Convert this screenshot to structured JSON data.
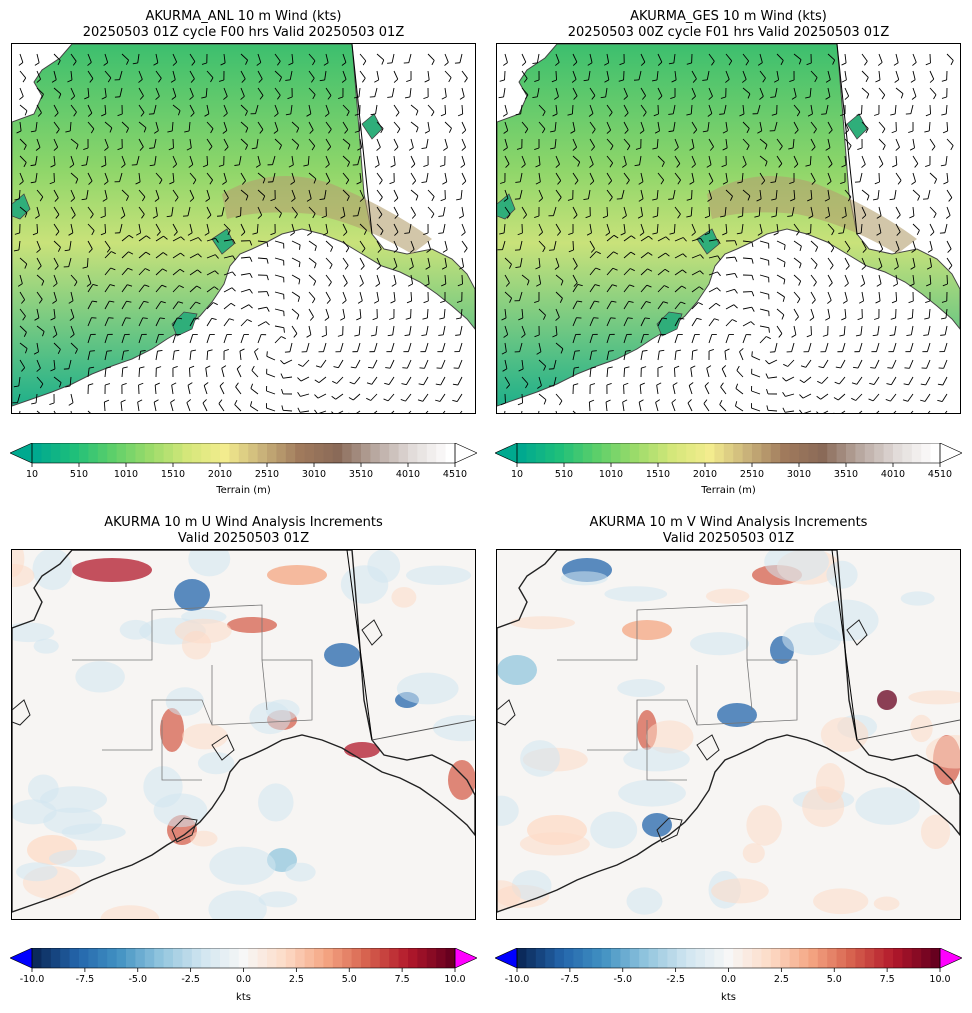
{
  "panels": [
    {
      "id": "anl",
      "title_line1": "AKURMA_ANL 10 m Wind (kts)",
      "title_line2": "20250503 01Z cycle F00 hrs Valid 20250503 01Z",
      "kind": "terrain"
    },
    {
      "id": "ges",
      "title_line1": "AKURMA_GES 10 m Wind (kts)",
      "title_line2": "20250503 00Z cycle F01 hrs Valid 20250503 01Z",
      "kind": "terrain"
    },
    {
      "id": "u_inc",
      "title_line1": "AKURMA 10 m U Wind Analysis Increments",
      "title_line2": "Valid 20250503 01Z",
      "kind": "increment"
    },
    {
      "id": "v_inc",
      "title_line1": "AKURMA 10 m V Wind Analysis Increments",
      "title_line2": "Valid 20250503 01Z",
      "kind": "increment"
    }
  ],
  "chart_data": [
    {
      "type": "heatmap",
      "title": "AKURMA_ANL 10 m Wind (kts) / 20250503 01Z cycle F00 hrs Valid 20250503 01Z",
      "colorbar": {
        "label": "Terrain (m)",
        "ticks": [
          "10",
          "510",
          "1010",
          "1510",
          "2010",
          "2510",
          "3010",
          "3510",
          "4010",
          "4510"
        ],
        "range": [
          10,
          4510
        ],
        "colors": [
          "#00a98f",
          "#1fbf7a",
          "#5ccf6a",
          "#9adb6a",
          "#d4e77a",
          "#f3ec8e",
          "#c9b27a",
          "#a07a5c",
          "#8a6a58",
          "#b8a8a0",
          "#e2dcda",
          "#ffffff"
        ]
      },
      "overlay": "wind barbs"
    },
    {
      "type": "heatmap",
      "title": "AKURMA_GES 10 m Wind (kts) / 20250503 00Z cycle F01 hrs Valid 20250503 01Z",
      "colorbar": {
        "label": "Terrain (m)",
        "ticks": [
          "10",
          "510",
          "1010",
          "1510",
          "2010",
          "2510",
          "3010",
          "3510",
          "4010",
          "4510"
        ],
        "range": [
          10,
          4510
        ],
        "colors": [
          "#00a98f",
          "#1fbf7a",
          "#5ccf6a",
          "#9adb6a",
          "#d4e77a",
          "#f3ec8e",
          "#c9b27a",
          "#a07a5c",
          "#8a6a58",
          "#b8a8a0",
          "#e2dcda",
          "#ffffff"
        ]
      },
      "overlay": "wind barbs"
    },
    {
      "type": "heatmap",
      "title": "AKURMA 10 m U Wind Analysis Increments / Valid 20250503 01Z",
      "colorbar": {
        "label": "kts",
        "ticks": [
          "-10.0",
          "-7.5",
          "-5.0",
          "-2.5",
          "0.0",
          "2.5",
          "5.0",
          "7.5",
          "10.0"
        ],
        "range": [
          -10,
          10
        ],
        "colors": [
          "#0b2a5b",
          "#2466ac",
          "#4393c3",
          "#92c5de",
          "#d1e5f0",
          "#f7f7f7",
          "#fddbc7",
          "#f4a582",
          "#d6604d",
          "#b2182b",
          "#67001f"
        ],
        "extend_low": "#0000ff",
        "extend_high": "#ff00ff"
      }
    },
    {
      "type": "heatmap",
      "title": "AKURMA 10 m V Wind Analysis Increments / Valid 20250503 01Z",
      "colorbar": {
        "label": "kts",
        "ticks": [
          "-10.0",
          "-7.5",
          "-5.0",
          "-2.5",
          "0.0",
          "2.5",
          "5.0",
          "7.5",
          "10.0"
        ],
        "range": [
          -10,
          10
        ],
        "colors": [
          "#0b2a5b",
          "#2466ac",
          "#4393c3",
          "#92c5de",
          "#d1e5f0",
          "#f7f7f7",
          "#fddbc7",
          "#f4a582",
          "#d6604d",
          "#b2182b",
          "#67001f"
        ],
        "extend_low": "#0000ff",
        "extend_high": "#ff00ff"
      }
    }
  ]
}
